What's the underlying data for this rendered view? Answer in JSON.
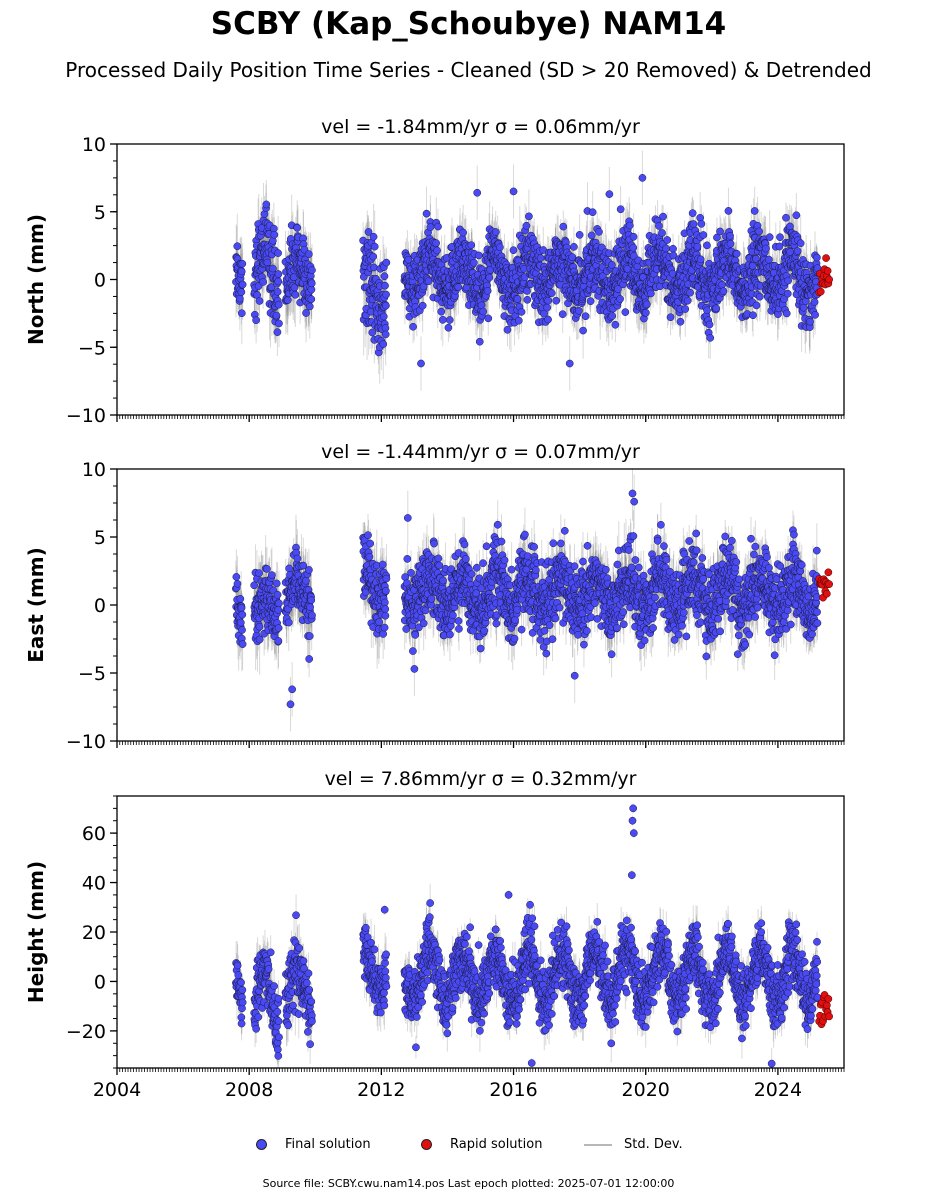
{
  "title": "SCBY (Kap_Schoubye) NAM14",
  "subtitle": "Processed Daily Position Time Series - Cleaned (SD > 20 Removed) & Detrended",
  "colors": {
    "final": "#4a4af5",
    "rapid": "#e01010",
    "std_dev": "#b8b8b8"
  },
  "chart_data": [
    {
      "type": "scatter",
      "title": "vel = -1.84mm/yr   σ = 0.06mm/yr",
      "ylabel": "North (mm)",
      "xlabel": "",
      "xlim": [
        2004,
        2026
      ],
      "ylim": [
        -10,
        10
      ],
      "yticks": [
        -10,
        -5,
        0,
        5,
        10
      ],
      "ytick_labels": [
        "−10",
        "−5",
        "0",
        "5",
        "10"
      ],
      "xticks": [
        2004,
        2008,
        2012,
        2016,
        2020,
        2024
      ],
      "xtick_labels": [],
      "segments": [
        {
          "x": [
            2007.6,
            2007.8
          ],
          "mean": 0.3,
          "amp": 1.5,
          "sd": 1.3,
          "err": 1.8
        },
        {
          "x": [
            2008.15,
            2008.9
          ],
          "mean": 0.5,
          "amp": 2.0,
          "sd": 1.5,
          "err": 1.9
        },
        {
          "x": [
            2009.1,
            2009.9
          ],
          "mean": 0.2,
          "amp": 1.2,
          "sd": 1.2,
          "err": 1.9
        },
        {
          "x": [
            2011.45,
            2012.15
          ],
          "mean": -0.8,
          "amp": 1.5,
          "sd": 1.7,
          "err": 2.0
        },
        {
          "x": [
            2012.7,
            2025.2
          ],
          "mean": 0.4,
          "amp": 1.4,
          "sd": 1.3,
          "err": 1.5
        }
      ],
      "rapid": {
        "x": [
          2025.25,
          2025.55
        ],
        "mean": 0.1,
        "sd": 0.7
      },
      "extremes": [
        [
          2013.2,
          -6.2
        ],
        [
          2017.7,
          -6.2
        ],
        [
          2019.9,
          7.5
        ],
        [
          2016.0,
          6.5
        ],
        [
          2014.9,
          6.4
        ],
        [
          2018.9,
          6.3
        ]
      ]
    },
    {
      "type": "scatter",
      "title": "vel = -1.44mm/yr   σ = 0.07mm/yr",
      "ylabel": "East (mm)",
      "xlabel": "",
      "xlim": [
        2004,
        2026
      ],
      "ylim": [
        -10,
        10
      ],
      "yticks": [
        -10,
        -5,
        0,
        5,
        10
      ],
      "ytick_labels": [
        "−10",
        "−5",
        "0",
        "5",
        "10"
      ],
      "xticks": [
        2004,
        2008,
        2012,
        2016,
        2020,
        2024
      ],
      "xtick_labels": [],
      "segments": [
        {
          "x": [
            2007.6,
            2007.8
          ],
          "mean": -0.4,
          "amp": 0.8,
          "sd": 1.0,
          "err": 1.8
        },
        {
          "x": [
            2008.15,
            2008.9
          ],
          "mean": -0.3,
          "amp": 0.9,
          "sd": 1.1,
          "err": 1.8
        },
        {
          "x": [
            2009.1,
            2009.9
          ],
          "mean": 0.4,
          "amp": 1.0,
          "sd": 1.2,
          "err": 1.8
        },
        {
          "x": [
            2011.45,
            2012.15
          ],
          "mean": 1.6,
          "amp": 1.0,
          "sd": 1.3,
          "err": 1.9
        },
        {
          "x": [
            2012.7,
            2025.2
          ],
          "mean": 0.9,
          "amp": 1.2,
          "sd": 1.3,
          "err": 1.5
        }
      ],
      "rapid": {
        "x": [
          2025.25,
          2025.55
        ],
        "mean": 1.7,
        "sd": 0.5
      },
      "extremes": [
        [
          2009.25,
          -7.3
        ],
        [
          2009.3,
          -6.2
        ],
        [
          2019.6,
          8.2
        ],
        [
          2019.65,
          7.6
        ],
        [
          2012.8,
          6.4
        ],
        [
          2013.0,
          -4.7
        ],
        [
          2017.85,
          -5.2
        ]
      ]
    },
    {
      "type": "scatter",
      "title": "vel = 7.86mm/yr   σ = 0.32mm/yr",
      "ylabel": "Height (mm)",
      "xlabel": "",
      "xlim": [
        2004,
        2026
      ],
      "ylim": [
        -35,
        75
      ],
      "yticks": [
        -20,
        0,
        20,
        40,
        60
      ],
      "ytick_labels": [
        "−20",
        "0",
        "20",
        "40",
        "60"
      ],
      "xticks": [
        2004,
        2008,
        2012,
        2016,
        2020,
        2024
      ],
      "xtick_labels": [
        "2004",
        "2008",
        "2012",
        "2016",
        "2020",
        "2024"
      ],
      "segments": [
        {
          "x": [
            2007.6,
            2007.8
          ],
          "mean": -3,
          "amp": 6,
          "sd": 6,
          "err": 7
        },
        {
          "x": [
            2008.15,
            2008.9
          ],
          "mean": -8,
          "amp": 12,
          "sd": 7,
          "err": 7
        },
        {
          "x": [
            2009.1,
            2009.9
          ],
          "mean": -4,
          "amp": 8,
          "sd": 6,
          "err": 7
        },
        {
          "x": [
            2011.45,
            2012.15
          ],
          "mean": 5,
          "amp": 8,
          "sd": 6,
          "err": 7
        },
        {
          "x": [
            2012.7,
            2025.2
          ],
          "mean": 2,
          "amp": 10,
          "sd": 6,
          "err": 6
        }
      ],
      "rapid": {
        "x": [
          2025.25,
          2025.55
        ],
        "mean": -12,
        "sd": 5
      },
      "extremes": [
        [
          2019.6,
          65
        ],
        [
          2019.62,
          70
        ],
        [
          2019.64,
          60
        ],
        [
          2019.58,
          43
        ],
        [
          2016.55,
          -33
        ],
        [
          2015.85,
          35
        ],
        [
          2016.5,
          31
        ],
        [
          2012.1,
          29
        ]
      ]
    }
  ],
  "legend": {
    "final_label": "Final solution",
    "rapid_label": "Rapid solution",
    "std_label": "Std. Dev."
  },
  "source_text": "Source file: SCBY.cwu.nam14.pos  Last epoch plotted: 2025-07-01 12:00:00"
}
